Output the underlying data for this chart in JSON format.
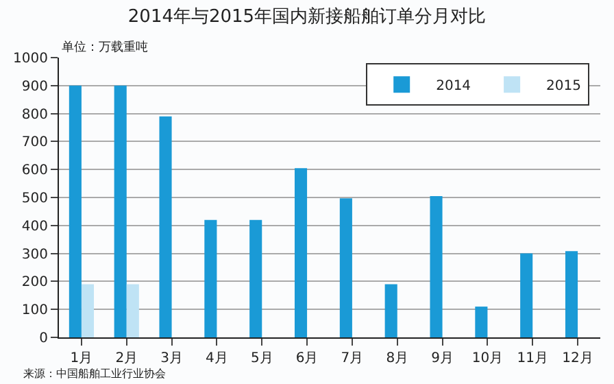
{
  "chart_data": {
    "type": "bar",
    "title": "2014年与2015年国内新接船舶订单分月对比",
    "ylabel": "单位：万载重吨",
    "categories": [
      "1月",
      "2月",
      "3月",
      "4月",
      "5月",
      "6月",
      "7月",
      "8月",
      "9月",
      "10月",
      "11月",
      "12月"
    ],
    "series": [
      {
        "name": "2014",
        "color": "#1a9ad6",
        "values": [
          900,
          900,
          790,
          420,
          420,
          605,
          497,
          190,
          505,
          110,
          300,
          308
        ]
      },
      {
        "name": "2015",
        "color": "#bfe3f5",
        "values": [
          190,
          190,
          null,
          null,
          null,
          null,
          null,
          null,
          null,
          null,
          null,
          null
        ]
      }
    ],
    "ylim": [
      0,
      1000
    ],
    "yticks": [
      0,
      100,
      200,
      300,
      400,
      500,
      600,
      700,
      800,
      900,
      1000
    ],
    "grid": "y",
    "legend": "top right",
    "annotations": [
      "来源：中国船舶工业行业协会"
    ]
  }
}
